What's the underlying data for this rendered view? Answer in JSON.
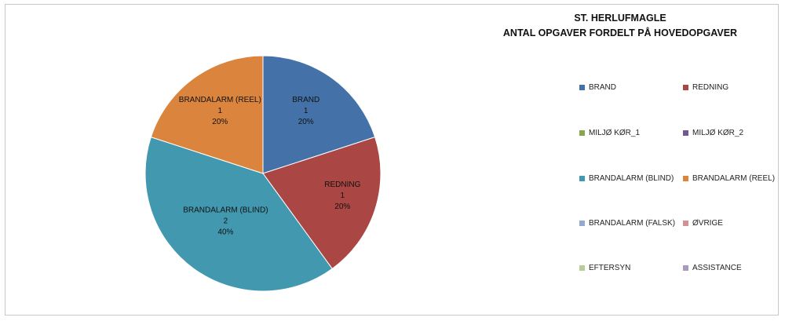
{
  "chart_data": {
    "type": "pie",
    "title": "ST. HERLUFMAGLE",
    "subtitle": "ANTAL OPGAVER FORDELT PÅ HOVEDOPGAVER",
    "slices": [
      {
        "name": "BRAND",
        "value": 1,
        "percent": "20%",
        "color": "#4472a8"
      },
      {
        "name": "REDNING",
        "value": 1,
        "percent": "20%",
        "color": "#aa4643"
      },
      {
        "name": "MILJØ KØR_1",
        "value": 0,
        "percent": "0%",
        "color": "#89a54e"
      },
      {
        "name": "MILJØ KØR_2",
        "value": 0,
        "percent": "0%",
        "color": "#71588f"
      },
      {
        "name": "BRANDALARM (BLIND)",
        "value": 2,
        "percent": "40%",
        "color": "#4198af"
      },
      {
        "name": "BRANDALARM (REEL)",
        "value": 1,
        "percent": "20%",
        "color": "#db843d"
      },
      {
        "name": "BRANDALARM (FALSK)",
        "value": 0,
        "percent": "0%",
        "color": "#93a9cf"
      },
      {
        "name": "ØVRIGE",
        "value": 0,
        "percent": "0%",
        "color": "#d19392"
      },
      {
        "name": "EFTERSYN",
        "value": 0,
        "percent": "0%",
        "color": "#b9cd96"
      },
      {
        "name": "ASSISTANCE",
        "value": 0,
        "percent": "0%",
        "color": "#a99bbd"
      }
    ],
    "legend": "right"
  }
}
